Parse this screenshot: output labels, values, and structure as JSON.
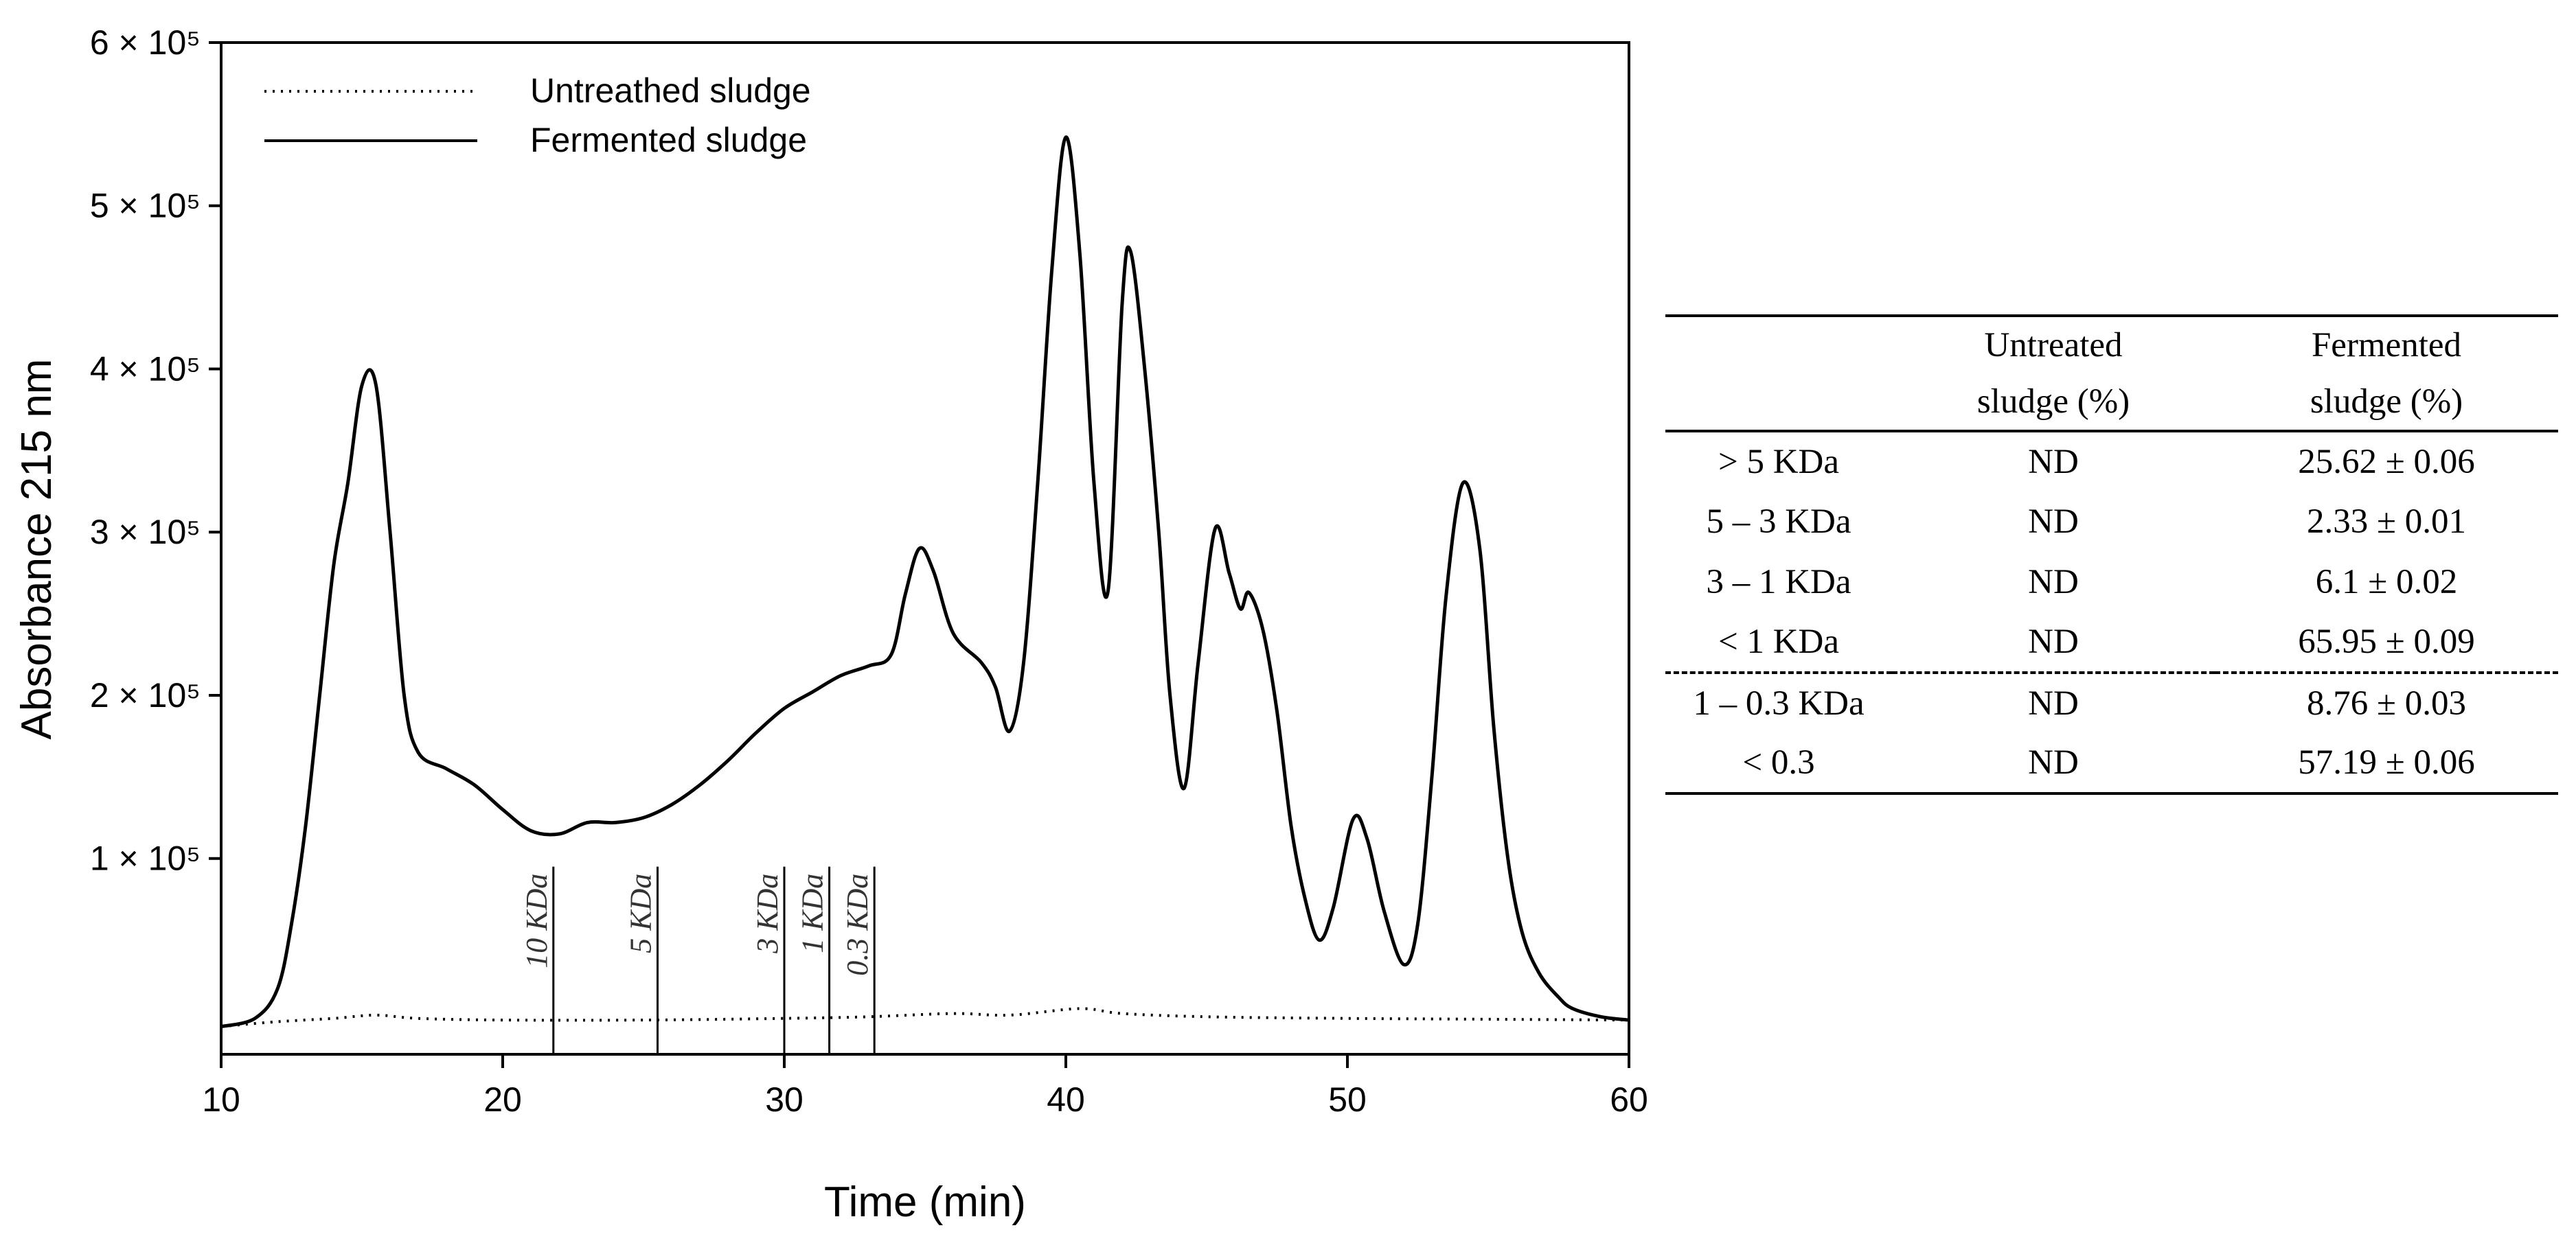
{
  "chart_data": {
    "type": "line",
    "xlabel": "Time (min)",
    "ylabel": "Absorbance 215 nm",
    "xlim": [
      10,
      60
    ],
    "ylim": [
      -20000,
      600000
    ],
    "xticks": [
      10,
      20,
      30,
      40,
      50,
      60
    ],
    "xtick_labels": [
      "10",
      "20",
      "30",
      "40",
      "50",
      "60"
    ],
    "yticks": [
      100000,
      200000,
      300000,
      400000,
      500000,
      600000
    ],
    "ytick_labels": [
      "1 × 10⁵",
      "2 × 10⁵",
      "3 × 10⁵",
      "4 × 10⁵",
      "5 × 10⁵",
      "6 × 10⁵"
    ],
    "legend_position": "top-left",
    "series": [
      {
        "name": "Untreathed sludge",
        "style": "dotted",
        "color": "#000000",
        "x": [
          10,
          12,
          14,
          15.5,
          17,
          20,
          25,
          30,
          33,
          36,
          38,
          40.5,
          42,
          45,
          50,
          55,
          60
        ],
        "y": [
          -3000,
          0,
          2000,
          4000,
          2000,
          1000,
          1000,
          2000,
          3000,
          5000,
          4000,
          8000,
          5000,
          3000,
          2000,
          1500,
          1000
        ]
      },
      {
        "name": "Fermented sludge",
        "style": "solid",
        "color": "#000000",
        "x": [
          10,
          11.2,
          12,
          12.5,
          13,
          13.5,
          14,
          14.5,
          15,
          15.5,
          16,
          16.5,
          17,
          18,
          19,
          20,
          21,
          22,
          23,
          24,
          25,
          26,
          27,
          28,
          29,
          30,
          31,
          32,
          33,
          33.8,
          34.3,
          34.8,
          35.3,
          36,
          37,
          37.5,
          38,
          38.5,
          39,
          39.5,
          40,
          40.5,
          41,
          41.5,
          42,
          42.3,
          42.8,
          43.3,
          43.7,
          44.2,
          44.7,
          45.3,
          45.8,
          46.2,
          46.5,
          47,
          47.5,
          48,
          48.5,
          49,
          49.5,
          50.2,
          50.7,
          51.3,
          52,
          52.5,
          53,
          53.5,
          54.1,
          54.7,
          55.2,
          55.7,
          56.2,
          56.8,
          57.5,
          58,
          59,
          60
        ],
        "y": [
          -3000,
          2000,
          20000,
          60000,
          120000,
          200000,
          280000,
          330000,
          390000,
          390000,
          300000,
          200000,
          165000,
          155000,
          145000,
          130000,
          117000,
          115000,
          122000,
          122000,
          125000,
          133000,
          145000,
          160000,
          177000,
          192000,
          202000,
          212000,
          218000,
          225000,
          262000,
          290000,
          276000,
          238000,
          220000,
          205000,
          178000,
          220000,
          330000,
          460000,
          542000,
          470000,
          330000,
          264000,
          440000,
          472000,
          400000,
          300000,
          200000,
          143000,
          220000,
          302000,
          275000,
          253000,
          263000,
          240000,
          190000,
          120000,
          75000,
          50000,
          70000,
          124000,
          112000,
          68000,
          35000,
          60000,
          150000,
          260000,
          330000,
          290000,
          180000,
          100000,
          55000,
          30000,
          15000,
          8000,
          3000,
          1000
        ]
      }
    ],
    "markers": [
      {
        "x": 21.8,
        "label": "10 KDa"
      },
      {
        "x": 25.5,
        "label": "5 KDa"
      },
      {
        "x": 30,
        "label": "3 KDa"
      },
      {
        "x": 31.6,
        "label": "1 KDa"
      },
      {
        "x": 33.2,
        "label": "0.3 KDa"
      }
    ]
  },
  "table": {
    "header": {
      "col1_line1": "Untreated",
      "col1_line2": "sludge (%)",
      "col2_line1": "Fermented",
      "col2_line2": "sludge (%)"
    },
    "rows": [
      {
        "label": "> 5 KDa",
        "untreated": "ND",
        "fermented": "25.62 ± 0.06"
      },
      {
        "label": "5 – 3 KDa",
        "untreated": "ND",
        "fermented": "2.33 ± 0.01"
      },
      {
        "label": "3 – 1 KDa",
        "untreated": "ND",
        "fermented": "6.1 ± 0.02"
      },
      {
        "label": "< 1 KDa",
        "untreated": "ND",
        "fermented": "65.95 ± 0.09"
      },
      {
        "label": "1 – 0.3 KDa",
        "untreated": "ND",
        "fermented": "8.76 ± 0.03"
      },
      {
        "label": "< 0.3",
        "untreated": "ND",
        "fermented": "57.19 ± 0.06"
      }
    ]
  }
}
